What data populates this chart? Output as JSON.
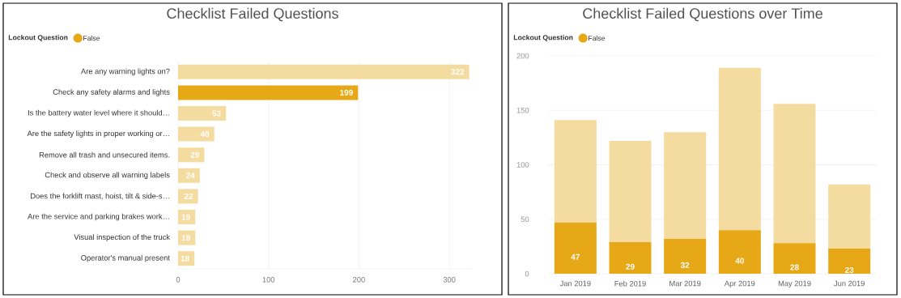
{
  "chart_data": [
    {
      "type": "bar",
      "orientation": "horizontal",
      "title": "Checklist Failed Questions",
      "legend_title": "Lockout Question",
      "legend": "top left",
      "categories": [
        "Are any warning lights on?",
        "Check any safety alarms and lights",
        "Is the battery water level where it should…",
        "Are the safety lights in proper working or…",
        "Remove all trash and unsecured items.",
        "Check and observe all warning labels",
        "Does the forklift mast, hoist, tilt & side-s…",
        "Are the service and parking brakes work…",
        "Visual inspection of the truck",
        "Operator's manual present"
      ],
      "series": [
        {
          "name": "False",
          "color": "#e6a817",
          "values": [
            322,
            199,
            53,
            40,
            29,
            24,
            22,
            19,
            19,
            18
          ],
          "colors": [
            "#f4dca0",
            "#e6a817",
            "#f4dca0",
            "#f4dca0",
            "#f4dca0",
            "#f4dca0",
            "#f4dca0",
            "#f4dca0",
            "#f4dca0",
            "#f4dca0"
          ]
        }
      ],
      "xlim": [
        0,
        325
      ],
      "xticks": [
        0,
        100,
        200,
        300
      ],
      "grid": "x",
      "data_labels": true
    },
    {
      "type": "bar",
      "stacked": true,
      "title": "Checklist Failed Questions over Time",
      "legend_title": "Lockout Question",
      "legend": "top left",
      "categories": [
        "Jan 2019",
        "Feb 2019",
        "Mar 2019",
        "Apr 2019",
        "May 2019",
        "Jun 2019"
      ],
      "series": [
        {
          "name": "False",
          "color": "#e6a817",
          "values": [
            47,
            29,
            32,
            40,
            28,
            23
          ],
          "value_labels": [
            "47",
            "29",
            "32",
            "40",
            "28",
            "23"
          ]
        },
        {
          "color": "#f4dca0",
          "values": [
            94,
            93,
            98,
            149,
            128,
            59
          ]
        }
      ],
      "ylim": [
        0,
        200
      ],
      "yticks": [
        0,
        50,
        100,
        150,
        200
      ],
      "grid": "y"
    }
  ]
}
